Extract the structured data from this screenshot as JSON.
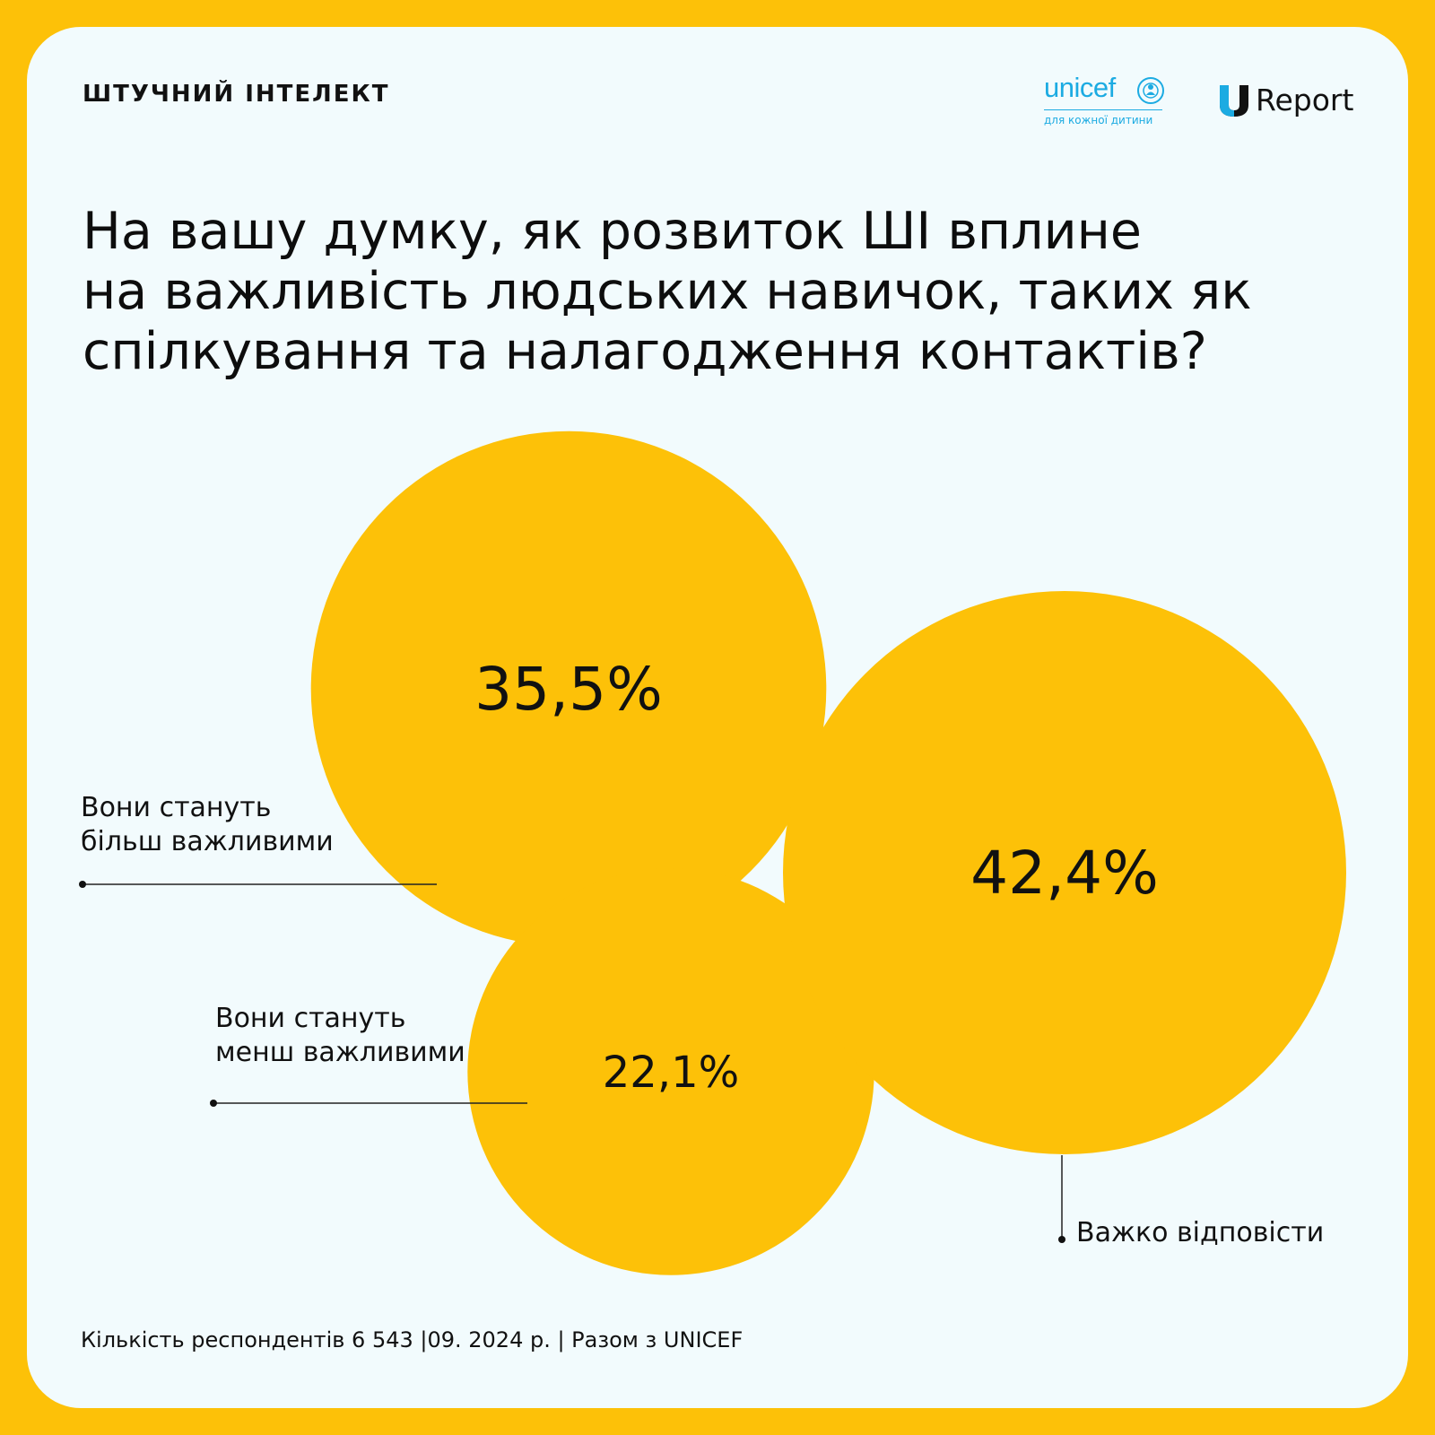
{
  "header": {
    "topic": "ШТУЧНИЙ ІНТЕЛЕКТ",
    "logos": {
      "unicef": {
        "word": "unicef",
        "tagline": "для кожної дитини",
        "color": "#1CABE2"
      },
      "ureport": {
        "mark": "U",
        "word": "Report",
        "color": "#1CABE2"
      }
    }
  },
  "headline": {
    "line1": "На вашу думку, як розвиток ШІ вплине",
    "line2": "на важливість людських навичок, таких як",
    "line3": "спілкування та налагодження контактів?"
  },
  "chart_data": {
    "type": "bubble",
    "unit": "%",
    "bubble_color": "#FDC108",
    "series": [
      {
        "label": "Вони стануть більш важливими",
        "value": 35.5,
        "value_label": "35,5%"
      },
      {
        "label": "Вони стануть менш важливими",
        "value": 22.1,
        "value_label": "22,1%"
      },
      {
        "label": "Важко відповісти",
        "value": 42.4,
        "value_label": "42,4%"
      }
    ]
  },
  "footer": {
    "note": "Кількість респондентів 6 543 |09. 2024 р. | Разом з UNICEF"
  },
  "colors": {
    "frame": "#FDC108",
    "card": "#F2FBFD",
    "text": "#111111"
  }
}
